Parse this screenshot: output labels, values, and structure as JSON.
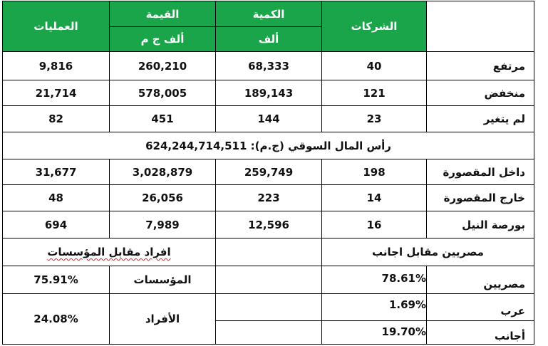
{
  "header": {
    "companies": "الشركات",
    "quantity": "الكمية",
    "value": "القيمة",
    "operations": "العمليات",
    "quantity_unit": "ألف",
    "value_unit": "ألف ج م"
  },
  "rows": {
    "up": {
      "label": "مرتفع",
      "companies": "40",
      "quantity": "68,333",
      "value": "260,210",
      "operations": "9,816"
    },
    "down": {
      "label": "منخفض",
      "companies": "121",
      "quantity": "189,143",
      "value": "578,005",
      "operations": "21,714"
    },
    "unchanged": {
      "label": "لم يتغير",
      "companies": "23",
      "quantity": "144",
      "value": "451",
      "operations": "82"
    }
  },
  "market_cap": "رأس المال السوقي (ج.م): 624,244,714,511",
  "markets": {
    "inside": {
      "label": "داخل المقصورة",
      "companies": "198",
      "quantity": "259,749",
      "value": "3,028,879",
      "operations": "31,677"
    },
    "outside": {
      "label": "خارج المقصورة",
      "companies": "14",
      "quantity": "223",
      "value": "26,056",
      "operations": "48"
    },
    "nile": {
      "label": "بورصة النيل",
      "companies": "16",
      "quantity": "12,596",
      "value": "7,989",
      "operations": "694"
    }
  },
  "investors": {
    "egyptians_vs_foreigners": "مصريين مقابل اجانب",
    "individuals_vs_institutions": "افراد مقابل المؤسسات",
    "egyptians_label": "مصريين",
    "egyptians_pct": "78.61%",
    "arabs_label": "عرب",
    "arabs_pct": "1.69%",
    "foreigners_label": "أجانب",
    "foreigners_pct": "19.70%",
    "institutions_label": "المؤسسات",
    "institutions_pct": "75.91%",
    "individuals_label": "الأفراد",
    "individuals_pct": "24.08%"
  },
  "colors": {
    "header_green": "#1aa54a"
  }
}
